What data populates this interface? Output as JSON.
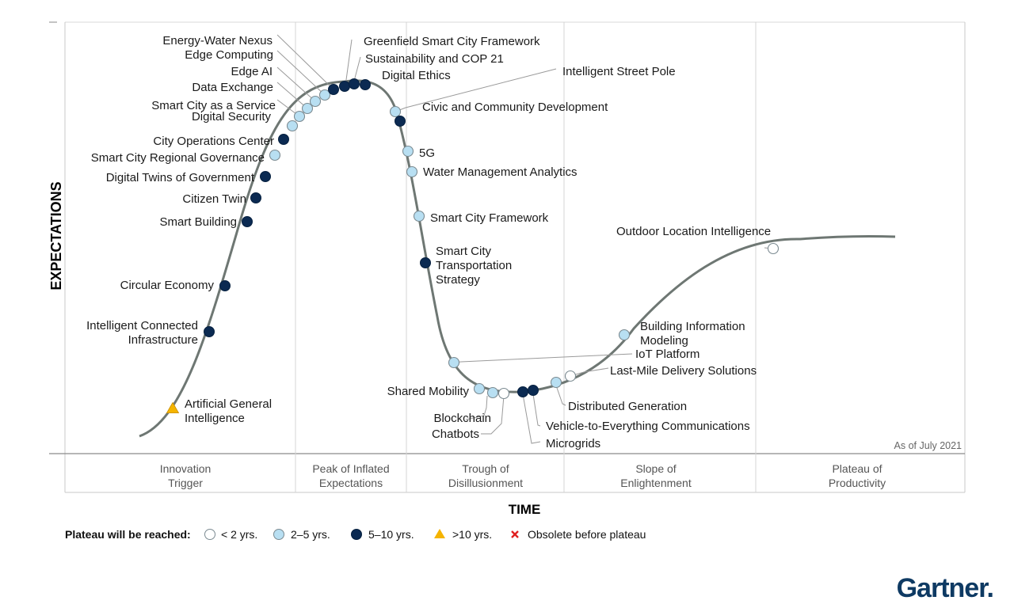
{
  "chart_data": {
    "type": "scatter",
    "xlabel": "TIME",
    "ylabel": "EXPECTATIONS",
    "as_of": "As of July 2021",
    "phases": [
      "Innovation Trigger",
      "Peak of Inflated Expectations",
      "Trough of Disillusionment",
      "Slope of Enlightenment",
      "Plateau of Productivity"
    ],
    "legend": {
      "title": "Plateau will be reached:",
      "items": [
        {
          "key": "lt2",
          "label": "< 2 yrs."
        },
        {
          "key": "y2_5",
          "label": "2–5 yrs."
        },
        {
          "key": "y5_10",
          "label": "5–10 yrs."
        },
        {
          "key": "gt10",
          "label": ">10 yrs."
        },
        {
          "key": "obsolete",
          "label": "Obsolete before plateau"
        }
      ]
    },
    "colors": {
      "lt2": "#ffffff",
      "y2_5": "#b8dff2",
      "y5_10": "#0b2a52",
      "gt10": "#f5b400",
      "obsolete": "#e02020",
      "curve": "#6e7773"
    },
    "points": [
      {
        "name": "Artificial General Intelligence",
        "cat": "gt10"
      },
      {
        "name": "Intelligent Connected Infrastructure",
        "cat": "y5_10"
      },
      {
        "name": "Circular Economy",
        "cat": "y5_10"
      },
      {
        "name": "Smart Building",
        "cat": "y5_10"
      },
      {
        "name": "Citizen Twin",
        "cat": "y5_10"
      },
      {
        "name": "Digital Twins of Government",
        "cat": "y5_10"
      },
      {
        "name": "Smart City Regional Governance",
        "cat": "y2_5"
      },
      {
        "name": "City Operations Center",
        "cat": "y5_10"
      },
      {
        "name": "Digital Security",
        "cat": "y2_5"
      },
      {
        "name": "Smart City as a Service",
        "cat": "y2_5"
      },
      {
        "name": "Data Exchange",
        "cat": "y2_5"
      },
      {
        "name": "Edge AI",
        "cat": "y2_5"
      },
      {
        "name": "Edge Computing",
        "cat": "y2_5"
      },
      {
        "name": "Energy-Water Nexus",
        "cat": "y5_10"
      },
      {
        "name": "Greenfield Smart City Framework",
        "cat": "y5_10"
      },
      {
        "name": "Sustainability and COP 21",
        "cat": "y5_10"
      },
      {
        "name": "Digital Ethics",
        "cat": "y5_10"
      },
      {
        "name": "Intelligent Street Pole",
        "cat": "y2_5"
      },
      {
        "name": "Civic and Community Development",
        "cat": "y5_10"
      },
      {
        "name": "5G",
        "cat": "y2_5"
      },
      {
        "name": "Water Management Analytics",
        "cat": "y2_5"
      },
      {
        "name": "Smart City Framework",
        "cat": "y2_5"
      },
      {
        "name": "Smart City Transportation Strategy",
        "cat": "y5_10"
      },
      {
        "name": "IoT Platform",
        "cat": "y2_5"
      },
      {
        "name": "Shared Mobility",
        "cat": "y2_5"
      },
      {
        "name": "Blockchain",
        "cat": "y2_5"
      },
      {
        "name": "Chatbots",
        "cat": "lt2"
      },
      {
        "name": "Microgrids",
        "cat": "y5_10"
      },
      {
        "name": "Vehicle-to-Everything Communications",
        "cat": "y5_10"
      },
      {
        "name": "Distributed Generation",
        "cat": "y2_5"
      },
      {
        "name": "Last-Mile Delivery Solutions",
        "cat": "lt2"
      },
      {
        "name": "Building Information Modeling",
        "cat": "y2_5"
      },
      {
        "name": "Outdoor Location Intelligence",
        "cat": "lt2"
      }
    ]
  },
  "brand": {
    "logo_text": "Gartner."
  }
}
